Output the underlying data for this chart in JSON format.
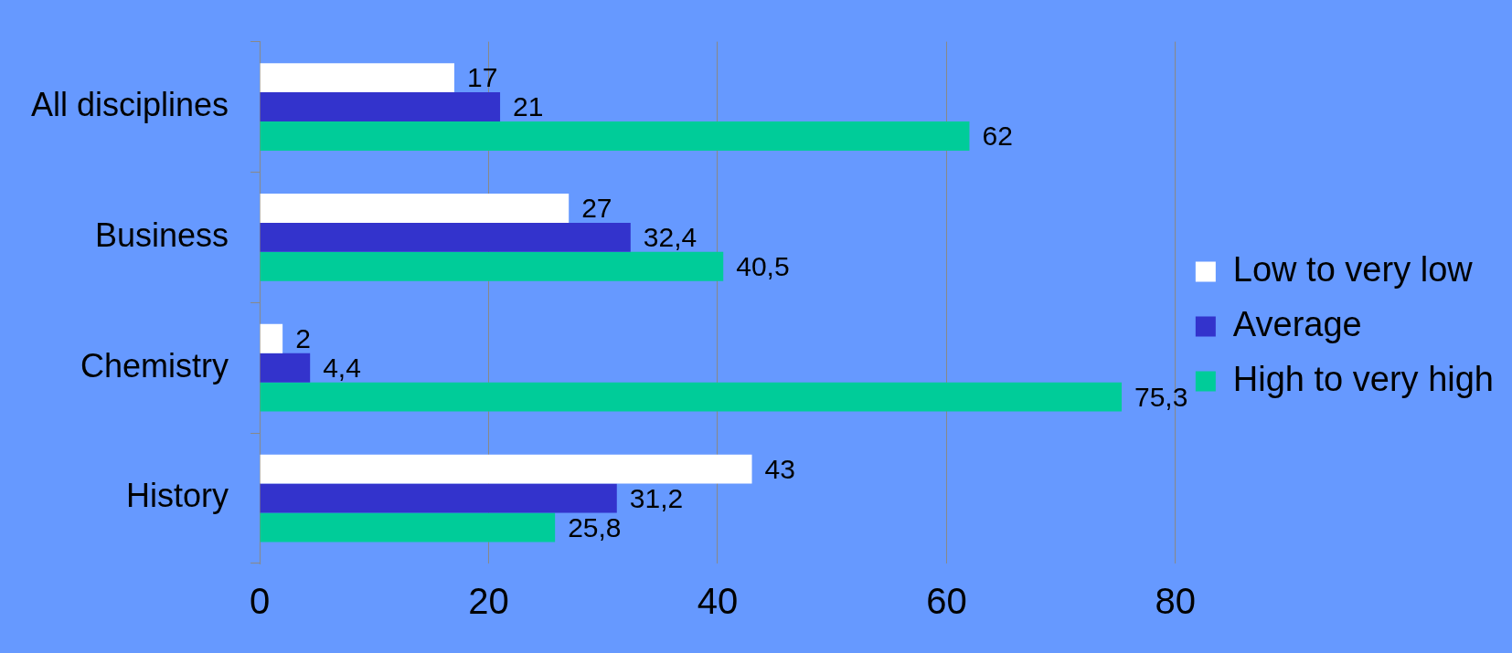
{
  "chart_data": {
    "type": "bar",
    "orientation": "horizontal",
    "categories": [
      "All disciplines",
      "Business",
      "Chemistry",
      "History"
    ],
    "series": [
      {
        "name": "Low to very low",
        "color": "#ffffff",
        "values": [
          17,
          27,
          2,
          43
        ],
        "value_labels": [
          "17",
          "27",
          "2",
          "43"
        ]
      },
      {
        "name": "Average",
        "color": "#3333cc",
        "values": [
          21,
          32.4,
          4.4,
          31.2
        ],
        "value_labels": [
          "21",
          "32,4",
          "4,4",
          "31,2"
        ]
      },
      {
        "name": "High to very high",
        "color": "#00cc99",
        "values": [
          62,
          40.5,
          75.3,
          25.8
        ],
        "value_labels": [
          "62",
          "40,5",
          "75,3",
          "25,8"
        ]
      }
    ],
    "xlim": [
      0,
      80
    ],
    "xticks": [
      0,
      20,
      40,
      60,
      80
    ],
    "grid": "x",
    "legend": "right"
  }
}
